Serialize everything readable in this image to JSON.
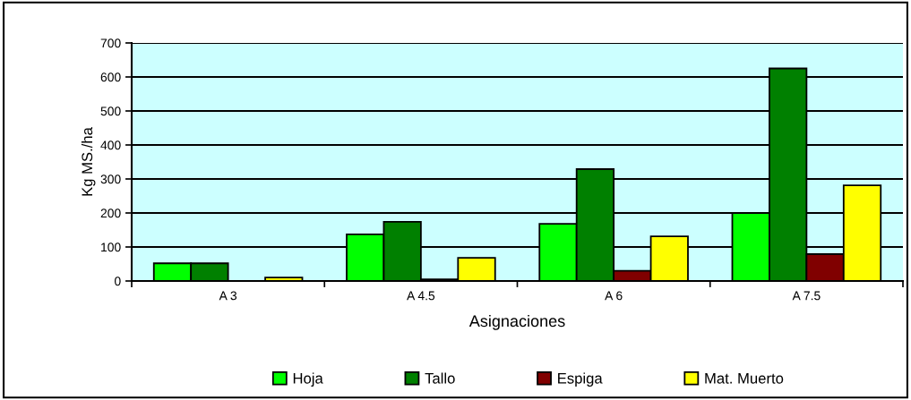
{
  "chart_data": {
    "type": "bar",
    "xlabel": "Asignaciones",
    "ylabel": "Kg MS./ha",
    "categories": [
      "A 3",
      "A 4.5",
      "A 6",
      "A 7.5"
    ],
    "series": [
      {
        "name": "Hoja",
        "color": "#00ff00",
        "values": [
          52,
          137,
          168,
          200
        ]
      },
      {
        "name": "Tallo",
        "color": "#008000",
        "values": [
          52,
          174,
          329,
          625
        ]
      },
      {
        "name": "Espiga",
        "color": "#800000",
        "values": [
          null,
          5,
          30,
          79
        ]
      },
      {
        "name": "Mat. Muerto",
        "color": "#ffff00",
        "values": [
          10,
          68,
          131,
          281
        ]
      }
    ],
    "ylim": [
      0,
      700
    ],
    "yticks": [
      0,
      100,
      200,
      300,
      400,
      500,
      600,
      700
    ],
    "grid": "y",
    "legend": "bottom"
  }
}
